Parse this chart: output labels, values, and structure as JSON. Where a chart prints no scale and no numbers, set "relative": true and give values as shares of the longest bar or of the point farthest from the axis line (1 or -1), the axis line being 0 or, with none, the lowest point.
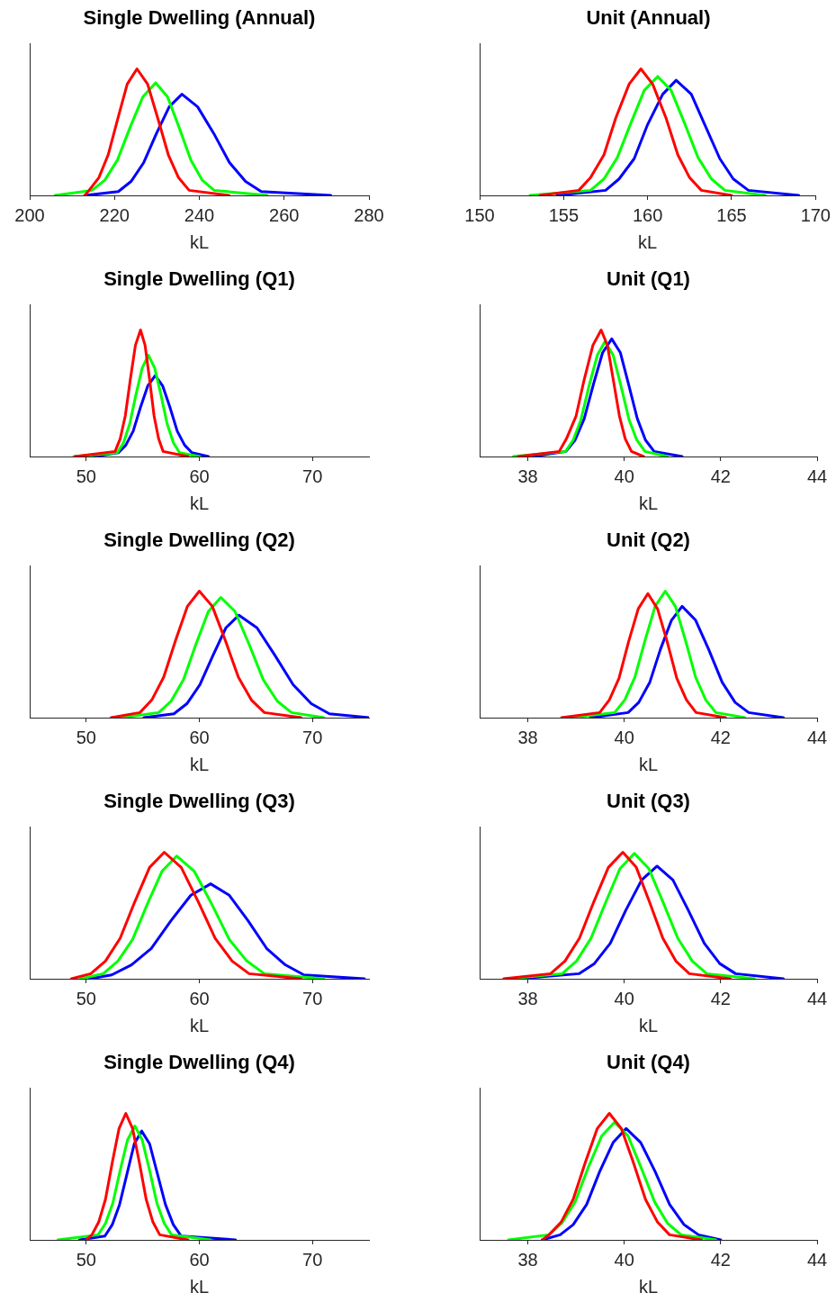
{
  "chart_data": [
    {
      "type": "line",
      "title": "Single Dwelling (Annual)",
      "xlabel": "kL",
      "relative": true,
      "xlim": [
        200,
        280
      ],
      "xticks": [
        200,
        220,
        240,
        260,
        280
      ],
      "series": [
        {
          "color": "#ff0000",
          "x": [
            213,
            214.0,
            216.3,
            218.5,
            220.8,
            223.0,
            225.3,
            227.8,
            230.2,
            232.7,
            235.1,
            237.6,
            247
          ],
          "values": [
            0,
            0.04,
            0.14,
            0.32,
            0.61,
            0.88,
            1,
            0.88,
            0.61,
            0.32,
            0.14,
            0.04,
            0
          ]
        },
        {
          "color": "#00ff00",
          "x": [
            206,
            214.7,
            217.7,
            220.7,
            223.7,
            226.7,
            229.7,
            232.5,
            235.2,
            238.0,
            240.7,
            243.5,
            256
          ],
          "values": [
            0,
            0.04,
            0.12,
            0.28,
            0.54,
            0.78,
            0.89,
            0.78,
            0.54,
            0.28,
            0.12,
            0.04,
            0
          ]
        },
        {
          "color": "#0000ff",
          "x": [
            213,
            220.9,
            223.9,
            226.9,
            229.9,
            232.9,
            235.9,
            239.6,
            243.4,
            247.1,
            250.9,
            254.6,
            271
          ],
          "values": [
            0,
            0.03,
            0.11,
            0.26,
            0.49,
            0.7,
            0.8,
            0.7,
            0.49,
            0.26,
            0.11,
            0.03,
            0
          ]
        }
      ]
    },
    {
      "type": "line",
      "title": "Unit (Annual)",
      "xlabel": "kL",
      "relative": true,
      "xlim": [
        150,
        170
      ],
      "xticks": [
        150,
        155,
        160,
        165,
        170
      ],
      "series": [
        {
          "color": "#ff0000",
          "x": [
            153.6,
            155.9,
            156.6,
            157.4,
            158.1,
            158.9,
            159.6,
            160.3,
            161.1,
            161.8,
            162.5,
            163.2,
            165
          ],
          "values": [
            0,
            0.04,
            0.14,
            0.32,
            0.61,
            0.88,
            1,
            0.88,
            0.61,
            0.32,
            0.14,
            0.04,
            0
          ]
        },
        {
          "color": "#00ff00",
          "x": [
            153,
            156.6,
            157.4,
            158.2,
            159.0,
            159.8,
            160.6,
            161.4,
            162.2,
            163.0,
            163.8,
            164.6,
            167
          ],
          "values": [
            0,
            0.04,
            0.13,
            0.3,
            0.57,
            0.83,
            0.94,
            0.83,
            0.57,
            0.3,
            0.13,
            0.04,
            0
          ]
        },
        {
          "color": "#0000ff",
          "x": [
            154.6,
            157.5,
            158.3,
            159.2,
            160.0,
            160.9,
            161.7,
            162.6,
            163.4,
            164.3,
            165.1,
            166.0,
            169
          ],
          "values": [
            0,
            0.04,
            0.13,
            0.29,
            0.56,
            0.8,
            0.91,
            0.8,
            0.56,
            0.29,
            0.13,
            0.04,
            0
          ]
        }
      ]
    },
    {
      "type": "line",
      "title": "Single Dwelling (Q1)",
      "xlabel": "kL",
      "relative": true,
      "xlim": [
        45,
        75
      ],
      "xticks": [
        50,
        60,
        70
      ],
      "series": [
        {
          "color": "#ff0000",
          "x": [
            49,
            52.55,
            53.0,
            53.45,
            53.9,
            54.35,
            54.8,
            55.2,
            55.6,
            56.0,
            56.4,
            56.8,
            59
          ],
          "values": [
            0,
            0.04,
            0.14,
            0.32,
            0.61,
            0.88,
            1,
            0.88,
            0.61,
            0.32,
            0.14,
            0.04,
            0
          ]
        },
        {
          "color": "#00ff00",
          "x": [
            48.9,
            52.75,
            53.3,
            53.85,
            54.4,
            54.95,
            55.5,
            56.05,
            56.6,
            57.15,
            57.7,
            58.25,
            60
          ],
          "values": [
            0,
            0.03,
            0.11,
            0.26,
            0.49,
            0.7,
            0.8,
            0.7,
            0.49,
            0.26,
            0.11,
            0.03,
            0
          ]
        },
        {
          "color": "#0000ff",
          "x": [
            50.6,
            52.85,
            53.5,
            54.15,
            54.8,
            55.45,
            56.1,
            56.75,
            57.4,
            58.05,
            58.7,
            59.35,
            60.8
          ],
          "values": [
            0,
            0.03,
            0.09,
            0.2,
            0.39,
            0.56,
            0.64,
            0.56,
            0.39,
            0.2,
            0.09,
            0.03,
            0
          ]
        }
      ]
    },
    {
      "type": "line",
      "title": "Unit (Q1)",
      "xlabel": "kL",
      "relative": true,
      "xlim": [
        37,
        44
      ],
      "xticks": [
        38,
        40,
        42,
        44
      ],
      "series": [
        {
          "color": "#ff0000",
          "x": [
            37.8,
            38.65,
            38.8,
            39.0,
            39.17,
            39.35,
            39.52,
            39.65,
            39.77,
            39.9,
            40.02,
            40.15,
            40.4
          ],
          "values": [
            0,
            0.04,
            0.14,
            0.32,
            0.61,
            0.88,
            1,
            0.88,
            0.61,
            0.32,
            0.14,
            0.04,
            0
          ]
        },
        {
          "color": "#00ff00",
          "x": [
            37.7,
            38.78,
            38.94,
            39.1,
            39.27,
            39.44,
            39.6,
            39.77,
            39.93,
            40.1,
            40.26,
            40.43,
            40.9
          ],
          "values": [
            0,
            0.04,
            0.13,
            0.29,
            0.56,
            0.8,
            0.91,
            0.8,
            0.56,
            0.29,
            0.13,
            0.04,
            0
          ]
        },
        {
          "color": "#0000ff",
          "x": [
            38.1,
            38.79,
            38.98,
            39.17,
            39.36,
            39.55,
            39.74,
            39.92,
            40.09,
            40.27,
            40.44,
            40.62,
            41.2
          ],
          "values": [
            0,
            0.04,
            0.13,
            0.3,
            0.57,
            0.82,
            0.93,
            0.82,
            0.57,
            0.3,
            0.13,
            0.04,
            0
          ]
        }
      ]
    },
    {
      "type": "line",
      "title": "Single Dwelling (Q2)",
      "xlabel": "kL",
      "relative": true,
      "xlim": [
        45,
        75
      ],
      "xticks": [
        50,
        60,
        70
      ],
      "series": [
        {
          "color": "#ff0000",
          "x": [
            52.2,
            54.75,
            55.8,
            56.85,
            57.9,
            58.95,
            60.0,
            61.15,
            62.3,
            63.45,
            64.6,
            65.75,
            69
          ],
          "values": [
            0,
            0.04,
            0.14,
            0.32,
            0.61,
            0.88,
            1,
            0.88,
            0.61,
            0.32,
            0.14,
            0.04,
            0
          ]
        },
        {
          "color": "#00ff00",
          "x": [
            53.1,
            56.4,
            57.5,
            58.6,
            59.7,
            60.8,
            61.9,
            63.15,
            64.4,
            65.65,
            66.9,
            68.15,
            71
          ],
          "values": [
            0,
            0.04,
            0.13,
            0.3,
            0.58,
            0.84,
            0.95,
            0.84,
            0.58,
            0.3,
            0.13,
            0.04,
            0
          ]
        },
        {
          "color": "#0000ff",
          "x": [
            55.1,
            57.75,
            58.9,
            60.05,
            61.2,
            62.35,
            63.5,
            65.1,
            66.7,
            68.3,
            69.9,
            71.5,
            75
          ],
          "values": [
            0,
            0.03,
            0.11,
            0.26,
            0.49,
            0.71,
            0.81,
            0.71,
            0.49,
            0.26,
            0.11,
            0.03,
            0
          ]
        }
      ]
    },
    {
      "type": "line",
      "title": "Unit (Q2)",
      "xlabel": "kL",
      "relative": true,
      "xlim": [
        37,
        44
      ],
      "xticks": [
        38,
        40,
        42,
        44
      ],
      "series": [
        {
          "color": "#ff0000",
          "x": [
            38.7,
            39.49,
            39.69,
            39.89,
            40.09,
            40.29,
            40.49,
            40.69,
            40.89,
            41.09,
            41.29,
            41.49,
            42.1
          ],
          "values": [
            0,
            0.04,
            0.14,
            0.31,
            0.6,
            0.86,
            0.98,
            0.86,
            0.6,
            0.31,
            0.14,
            0.04,
            0
          ]
        },
        {
          "color": "#00ff00",
          "x": [
            38.9,
            39.8,
            40.01,
            40.22,
            40.43,
            40.64,
            40.85,
            41.06,
            41.27,
            41.48,
            41.69,
            41.9,
            42.5
          ],
          "values": [
            0,
            0.04,
            0.14,
            0.32,
            0.61,
            0.88,
            1,
            0.88,
            0.61,
            0.32,
            0.14,
            0.04,
            0
          ]
        },
        {
          "color": "#0000ff",
          "x": [
            39.3,
            40.08,
            40.3,
            40.53,
            40.75,
            40.98,
            41.2,
            41.48,
            41.75,
            42.03,
            42.3,
            42.58,
            43.3
          ],
          "values": [
            0,
            0.04,
            0.12,
            0.28,
            0.54,
            0.77,
            0.88,
            0.77,
            0.54,
            0.28,
            0.12,
            0.04,
            0
          ]
        }
      ]
    },
    {
      "type": "line",
      "title": "Single Dwelling (Q3)",
      "xlabel": "kL",
      "relative": true,
      "xlim": [
        45,
        75
      ],
      "xticks": [
        50,
        60,
        70
      ],
      "series": [
        {
          "color": "#ff0000",
          "x": [
            48.7,
            50.4,
            51.7,
            53.0,
            54.3,
            55.6,
            56.9,
            58.4,
            59.9,
            61.4,
            62.9,
            64.4,
            69
          ],
          "values": [
            0,
            0.04,
            0.14,
            0.32,
            0.61,
            0.88,
            1,
            0.88,
            0.61,
            0.32,
            0.14,
            0.04,
            0
          ]
        },
        {
          "color": "#00ff00",
          "x": [
            49.5,
            51.5,
            52.8,
            54.1,
            55.4,
            56.7,
            58.0,
            59.55,
            61.1,
            62.65,
            64.2,
            65.75,
            71
          ],
          "values": [
            0,
            0.04,
            0.14,
            0.31,
            0.59,
            0.85,
            0.97,
            0.85,
            0.59,
            0.31,
            0.14,
            0.04,
            0
          ]
        },
        {
          "color": "#0000ff",
          "x": [
            50.3,
            52.25,
            54.0,
            55.75,
            57.5,
            59.25,
            61.0,
            62.65,
            64.3,
            65.95,
            67.6,
            69.25,
            74.6
          ],
          "values": [
            0,
            0.03,
            0.11,
            0.24,
            0.46,
            0.66,
            0.75,
            0.66,
            0.46,
            0.24,
            0.11,
            0.03,
            0
          ]
        }
      ]
    },
    {
      "type": "line",
      "title": "Unit (Q3)",
      "xlabel": "kL",
      "relative": true,
      "xlim": [
        37,
        44
      ],
      "xticks": [
        38,
        40,
        42,
        44
      ],
      "series": [
        {
          "color": "#ff0000",
          "x": [
            37.5,
            38.47,
            38.77,
            39.07,
            39.37,
            39.67,
            39.97,
            40.25,
            40.52,
            40.8,
            41.07,
            41.35,
            42.2
          ],
          "values": [
            0,
            0.04,
            0.14,
            0.32,
            0.61,
            0.88,
            1,
            0.88,
            0.61,
            0.32,
            0.14,
            0.04,
            0
          ]
        },
        {
          "color": "#00ff00",
          "x": [
            37.6,
            38.71,
            39.01,
            39.31,
            39.61,
            39.91,
            40.21,
            40.51,
            40.81,
            41.11,
            41.41,
            41.71,
            42.7
          ],
          "values": [
            0,
            0.04,
            0.14,
            0.32,
            0.6,
            0.87,
            0.99,
            0.87,
            0.6,
            0.32,
            0.14,
            0.04,
            0
          ]
        },
        {
          "color": "#0000ff",
          "x": [
            37.8,
            39.06,
            39.38,
            39.71,
            40.03,
            40.36,
            40.68,
            41.01,
            41.33,
            41.66,
            41.98,
            42.31,
            43.3
          ],
          "values": [
            0,
            0.04,
            0.12,
            0.28,
            0.54,
            0.78,
            0.89,
            0.78,
            0.54,
            0.28,
            0.12,
            0.04,
            0
          ]
        }
      ]
    },
    {
      "type": "line",
      "title": "Single Dwelling (Q4)",
      "xlabel": "kL",
      "relative": true,
      "xlim": [
        45,
        75
      ],
      "xticks": [
        50,
        60,
        70
      ],
      "series": [
        {
          "color": "#ff0000",
          "x": [
            50,
            50.5,
            51.1,
            51.7,
            52.3,
            52.9,
            53.5,
            54.1,
            54.7,
            55.3,
            55.9,
            56.5,
            59
          ],
          "values": [
            0,
            0.04,
            0.14,
            0.32,
            0.61,
            0.88,
            1,
            0.88,
            0.61,
            0.32,
            0.14,
            0.04,
            0
          ]
        },
        {
          "color": "#00ff00",
          "x": [
            47.5,
            51.05,
            51.7,
            52.35,
            53.0,
            53.65,
            54.3,
            54.95,
            55.6,
            56.25,
            56.9,
            57.55,
            61
          ],
          "values": [
            0,
            0.04,
            0.13,
            0.29,
            0.55,
            0.79,
            0.9,
            0.79,
            0.55,
            0.29,
            0.13,
            0.04,
            0
          ]
        },
        {
          "color": "#0000ff",
          "x": [
            49.4,
            51.65,
            52.3,
            52.95,
            53.6,
            54.25,
            54.9,
            55.6,
            56.3,
            57.0,
            57.7,
            58.4,
            63.2
          ],
          "values": [
            0,
            0.03,
            0.12,
            0.28,
            0.52,
            0.76,
            0.86,
            0.76,
            0.52,
            0.28,
            0.12,
            0.03,
            0
          ]
        }
      ]
    },
    {
      "type": "line",
      "title": "Unit (Q4)",
      "xlabel": "kL",
      "relative": true,
      "xlim": [
        37,
        44
      ],
      "xticks": [
        38,
        40,
        42,
        44
      ],
      "series": [
        {
          "color": "#ff0000",
          "x": [
            38.3,
            38.44,
            38.69,
            38.94,
            39.19,
            39.44,
            39.69,
            39.94,
            40.19,
            40.44,
            40.69,
            40.94,
            41.6
          ],
          "values": [
            0,
            0.04,
            0.14,
            0.32,
            0.61,
            0.88,
            1,
            0.88,
            0.61,
            0.32,
            0.14,
            0.04,
            0
          ]
        },
        {
          "color": "#00ff00",
          "x": [
            37.6,
            38.43,
            38.7,
            38.98,
            39.25,
            39.53,
            39.8,
            40.08,
            40.35,
            40.63,
            40.9,
            41.18,
            41.9
          ],
          "values": [
            0,
            0.04,
            0.13,
            0.3,
            0.57,
            0.82,
            0.93,
            0.82,
            0.57,
            0.3,
            0.13,
            0.04,
            0
          ]
        },
        {
          "color": "#0000ff",
          "x": [
            38.3,
            38.67,
            38.94,
            39.22,
            39.49,
            39.77,
            40.04,
            40.34,
            40.64,
            40.94,
            41.24,
            41.54,
            42.0
          ],
          "values": [
            0,
            0.04,
            0.12,
            0.28,
            0.54,
            0.77,
            0.88,
            0.77,
            0.54,
            0.28,
            0.12,
            0.04,
            0
          ]
        }
      ]
    }
  ]
}
